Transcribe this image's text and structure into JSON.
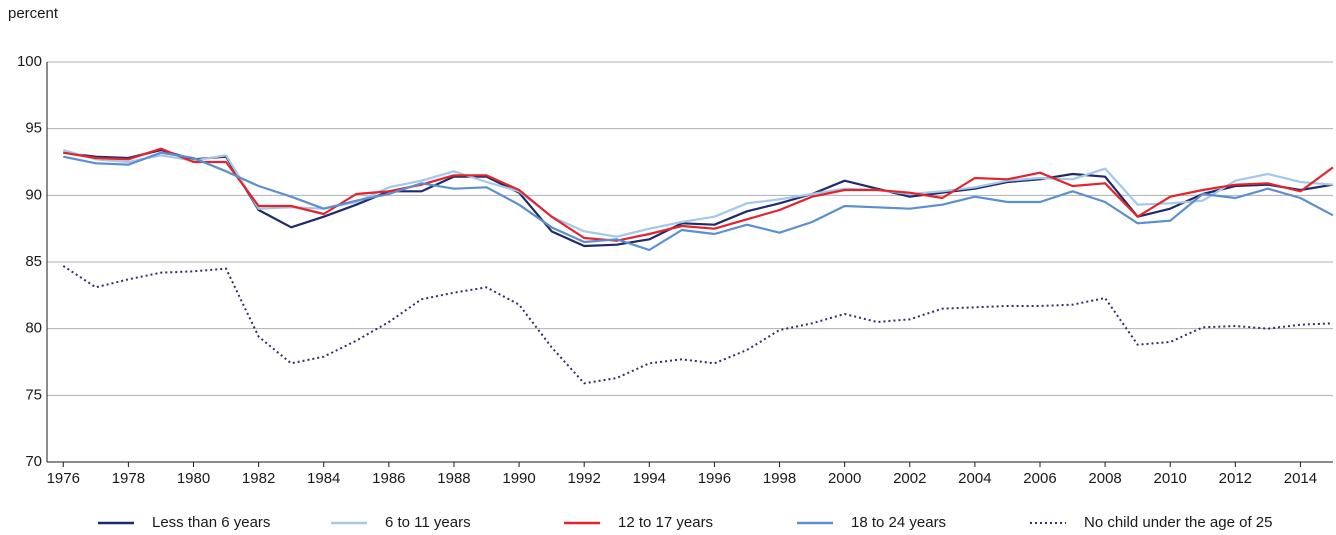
{
  "chart_data": {
    "type": "line",
    "y_label": "percent",
    "x": [
      1976,
      1977,
      1978,
      1979,
      1980,
      1981,
      1982,
      1983,
      1984,
      1985,
      1986,
      1987,
      1988,
      1989,
      1990,
      1991,
      1992,
      1993,
      1994,
      1995,
      1996,
      1997,
      1998,
      1999,
      2000,
      2001,
      2002,
      2003,
      2004,
      2005,
      2006,
      2007,
      2008,
      2009,
      2010,
      2011,
      2012,
      2013,
      2014,
      2015
    ],
    "xlim": [
      1975.5,
      2015
    ],
    "xticks": [
      1976,
      1978,
      1980,
      1982,
      1984,
      1986,
      1988,
      1990,
      1992,
      1994,
      1996,
      1998,
      2000,
      2002,
      2004,
      2006,
      2008,
      2010,
      2012,
      2014
    ],
    "ylim": [
      70,
      100
    ],
    "yticks": [
      70,
      75,
      80,
      85,
      90,
      95,
      100
    ],
    "grid": true,
    "legend": "bottom",
    "series": [
      {
        "name": "Less than 6 years",
        "color": "#1f2a6b",
        "style": "solid",
        "values": [
          93.2,
          92.9,
          92.8,
          93.4,
          92.7,
          92.9,
          88.9,
          87.6,
          88.4,
          89.3,
          90.3,
          90.3,
          91.4,
          91.4,
          90.2,
          87.3,
          86.2,
          86.3,
          86.7,
          87.9,
          87.8,
          88.8,
          89.4,
          90.1,
          91.1,
          90.5,
          89.9,
          90.2,
          90.5,
          91.0,
          91.2,
          91.6,
          91.4,
          88.4,
          89.0,
          90.1,
          90.7,
          90.8,
          90.4,
          90.8
        ]
      },
      {
        "name": "6 to 11 years",
        "color": "#a3c8ea",
        "style": "solid",
        "values": [
          93.4,
          92.7,
          92.5,
          93.0,
          92.6,
          93.0,
          89.0,
          89.1,
          89.0,
          89.5,
          90.6,
          91.1,
          91.8,
          91.0,
          90.3,
          88.4,
          87.3,
          86.9,
          87.5,
          88.0,
          88.4,
          89.4,
          89.7,
          90.1,
          90.5,
          90.4,
          90.1,
          90.3,
          90.6,
          91.1,
          91.3,
          91.2,
          92.0,
          89.3,
          89.4,
          89.6,
          91.1,
          91.6,
          91.0,
          90.8
        ]
      },
      {
        "name": "12 to 17 years",
        "color": "#e3242b",
        "style": "solid",
        "values": [
          93.2,
          92.8,
          92.7,
          93.5,
          92.5,
          92.5,
          89.2,
          89.2,
          88.6,
          90.1,
          90.3,
          90.8,
          91.5,
          91.5,
          90.4,
          88.4,
          86.8,
          86.6,
          87.1,
          87.7,
          87.5,
          88.2,
          88.9,
          89.9,
          90.4,
          90.4,
          90.2,
          89.8,
          91.3,
          91.2,
          91.7,
          90.7,
          90.9,
          88.4,
          89.9,
          90.4,
          90.8,
          90.9,
          90.3,
          92.1
        ]
      },
      {
        "name": "18 to 24 years",
        "color": "#5b8fcf",
        "style": "solid",
        "values": [
          92.9,
          92.4,
          92.3,
          93.2,
          92.8,
          91.8,
          90.7,
          89.9,
          89.0,
          89.6,
          90.1,
          90.9,
          90.5,
          90.6,
          89.3,
          87.6,
          86.5,
          86.7,
          85.9,
          87.4,
          87.1,
          87.8,
          87.2,
          88.0,
          89.2,
          89.1,
          89.0,
          89.3,
          89.9,
          89.5,
          89.5,
          90.3,
          89.5,
          87.9,
          88.1,
          90.1,
          89.8,
          90.5,
          89.8,
          88.5
        ]
      },
      {
        "name": "No child under the age of 25",
        "color": "#2b2f6b",
        "style": "dotted",
        "values": [
          84.7,
          83.1,
          83.7,
          84.2,
          84.3,
          84.5,
          79.4,
          77.4,
          77.9,
          79.1,
          80.5,
          82.2,
          82.7,
          83.1,
          81.8,
          78.6,
          75.9,
          76.3,
          77.4,
          77.7,
          77.4,
          78.4,
          79.9,
          80.4,
          81.1,
          80.5,
          80.7,
          81.5,
          81.6,
          81.7,
          81.7,
          81.8,
          82.3,
          78.8,
          79.0,
          80.1,
          80.2,
          80.0,
          80.3,
          80.4
        ]
      }
    ]
  }
}
